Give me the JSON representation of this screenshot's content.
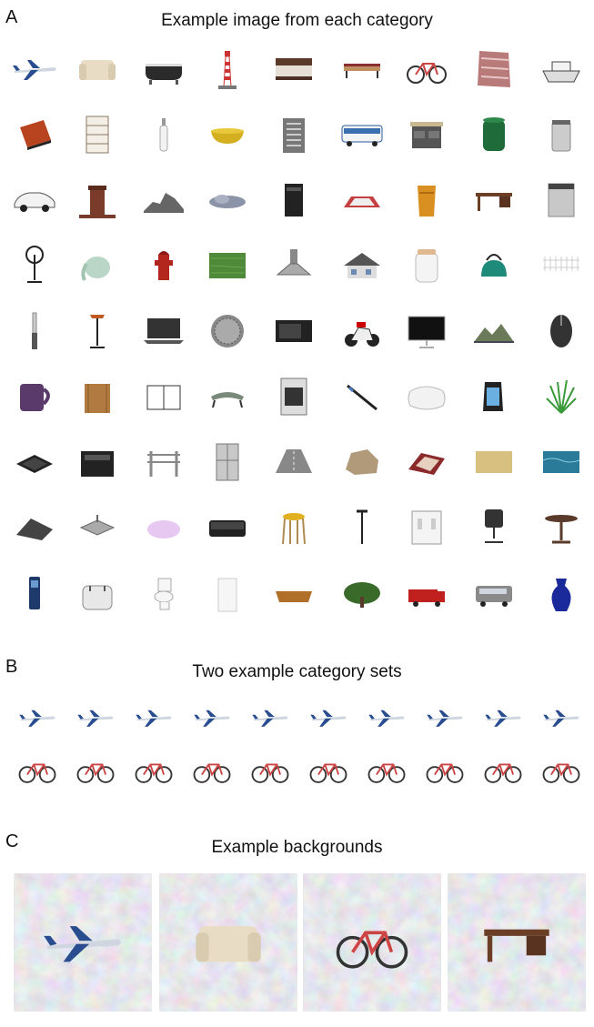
{
  "panel_a": {
    "letter": "A",
    "title": "Example image from each category",
    "categories": [
      [
        "airplane-icon",
        "armchair-icon",
        "bathtub-icon",
        "lighthouse-icon",
        "bed-icon",
        "bench-icon",
        "bicycle-icon",
        "blanket-icon",
        "boat-icon"
      ],
      [
        "book-icon",
        "bookcase-icon",
        "bottle-icon",
        "bowl-icon",
        "building-icon",
        "bus-icon",
        "kitchen-island-icon",
        "candle-icon",
        "canister-icon"
      ],
      [
        "car-icon",
        "chimney-icon",
        "cliff-icon",
        "cloud-icon",
        "computer-tower-icon",
        "crosswalk-icon",
        "cup-icon",
        "desk-icon",
        "dishwasher-icon"
      ],
      [
        "fan-icon",
        "elephant-figurine-icon",
        "fire-hydrant-icon",
        "grass-icon",
        "range-hood-icon",
        "house-icon",
        "jar-icon",
        "kettle-icon",
        "fence-icon"
      ],
      [
        "knife-icon",
        "floor-lamp-icon",
        "laptop-icon",
        "manhole-icon",
        "microwave-icon",
        "motorcycle-icon",
        "monitor-icon",
        "mountain-icon",
        "mouse-icon"
      ],
      [
        "mug-icon",
        "napkin-holder-icon",
        "notebook-icon",
        "ottoman-icon",
        "oven-icon",
        "pen-icon",
        "pillow-icon",
        "pitcher-icon",
        "plant-icon"
      ],
      [
        "tray-icon",
        "printer-icon",
        "railing-icon",
        "refrigerator-icon",
        "road-icon",
        "rock-icon",
        "rug-icon",
        "sand-icon",
        "sea-icon"
      ],
      [
        "tarp-icon",
        "sink-icon",
        "soap-icon",
        "sofa-icon",
        "stool-icon",
        "streetlight-icon",
        "switch-icon",
        "office-chair-icon",
        "table-icon"
      ],
      [
        "telephone-icon",
        "toaster-icon",
        "toilet-icon",
        "towel-icon",
        "basket-icon",
        "tree-icon",
        "truck-icon",
        "van-icon",
        "vase-icon"
      ]
    ]
  },
  "panel_b": {
    "letter": "B",
    "title": "Two example category sets",
    "airplanes": 10,
    "bicycles": 10
  },
  "panel_c": {
    "letter": "C",
    "title": "Example backgrounds",
    "objects": [
      "airplane-icon",
      "armchair-icon",
      "bicycle-icon",
      "desk-icon"
    ]
  }
}
